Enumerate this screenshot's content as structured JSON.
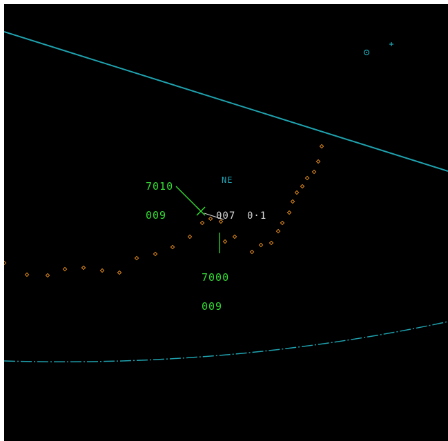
{
  "colors": {
    "background": "#000000",
    "map_lines": "#1fa3b0",
    "track_history": "#e08a1e",
    "aircraft": "#33dd33",
    "label_text": "#d8d8d8"
  },
  "sector_label": "NE",
  "aircraft": [
    {
      "squawk": "7010",
      "flight_level": "009",
      "symbol": "cross-icon"
    },
    {
      "squawk": "7000",
      "flight_level": "009",
      "symbol": "none"
    }
  ],
  "target_tag": {
    "id": "007",
    "range": "0·1"
  }
}
